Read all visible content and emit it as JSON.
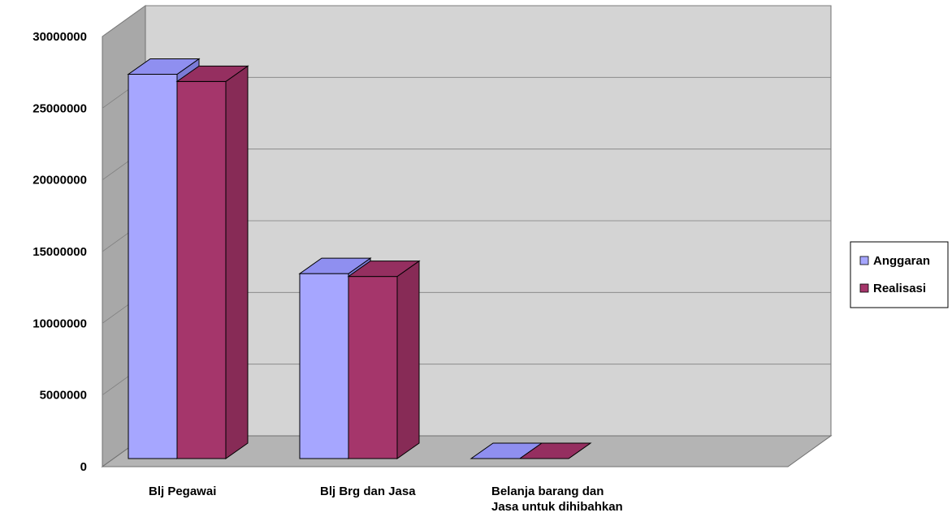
{
  "chart_data": {
    "type": "bar",
    "title": "",
    "xlabel": "",
    "ylabel": "",
    "ylim": [
      0,
      30000000
    ],
    "yticks": [
      0,
      5000000,
      10000000,
      15000000,
      20000000,
      25000000,
      30000000
    ],
    "ytick_labels": [
      "0",
      "5000000",
      "10000000",
      "15000000",
      "20000000",
      "25000000",
      "30000000"
    ],
    "categories": [
      [
        "Blj Pegawai"
      ],
      [
        "Blj Brg dan Jasa"
      ],
      [
        "Belanja barang dan",
        "Jasa untuk dihibahkan"
      ]
    ],
    "series": [
      {
        "name": "Anggaran",
        "values": [
          26800000,
          12900000,
          0
        ],
        "color": "#a6a6ff",
        "top_color": "#8f8ff0",
        "side_color": "#7b7bd6"
      },
      {
        "name": "Realisasi",
        "values": [
          26300000,
          12700000,
          0
        ],
        "color": "#a5366b",
        "top_color": "#952f60",
        "side_color": "#872b56"
      }
    ],
    "grid": true,
    "legend_position": "right",
    "style": "3d",
    "colors": {
      "back_wall": "#d4d4d4",
      "side_wall": "#a8a8a8",
      "floor": "#b4b4b4",
      "gridline": "#808080",
      "edge": "#000000"
    }
  }
}
